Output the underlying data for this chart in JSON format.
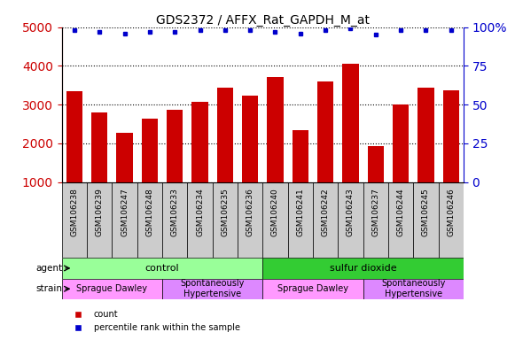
{
  "title": "GDS2372 / AFFX_Rat_GAPDH_M_at",
  "samples": [
    "GSM106238",
    "GSM106239",
    "GSM106247",
    "GSM106248",
    "GSM106233",
    "GSM106234",
    "GSM106235",
    "GSM106236",
    "GSM106240",
    "GSM106241",
    "GSM106242",
    "GSM106243",
    "GSM106237",
    "GSM106244",
    "GSM106245",
    "GSM106246"
  ],
  "counts": [
    3350,
    2800,
    2270,
    2650,
    2870,
    3080,
    3430,
    3240,
    3720,
    2340,
    3590,
    4060,
    1940,
    3010,
    3440,
    3380
  ],
  "percentile_ranks": [
    98,
    97,
    96,
    97,
    97,
    98,
    98,
    98,
    97,
    96,
    98,
    99,
    95,
    98,
    98,
    98
  ],
  "bar_color": "#cc0000",
  "dot_color": "#0000cc",
  "ylim_left": [
    1000,
    5000
  ],
  "ylim_right": [
    0,
    100
  ],
  "yticks_left": [
    1000,
    2000,
    3000,
    4000,
    5000
  ],
  "yticks_right": [
    0,
    25,
    50,
    75,
    100
  ],
  "agent_groups": [
    {
      "label": "control",
      "start": 0,
      "end": 8,
      "color": "#99ff99"
    },
    {
      "label": "sulfur dioxide",
      "start": 8,
      "end": 16,
      "color": "#33cc33"
    }
  ],
  "strain_groups": [
    {
      "label": "Sprague Dawley",
      "start": 0,
      "end": 4,
      "color": "#ff99ff"
    },
    {
      "label": "Spontaneously\nHypertensive",
      "start": 4,
      "end": 8,
      "color": "#dd88ff"
    },
    {
      "label": "Sprague Dawley",
      "start": 8,
      "end": 12,
      "color": "#ff99ff"
    },
    {
      "label": "Spontaneously\nHypertensive",
      "start": 12,
      "end": 16,
      "color": "#dd88ff"
    }
  ],
  "xtick_bg": "#cccccc",
  "plot_bg_color": "#ffffff",
  "left_tick_color": "#cc0000",
  "right_tick_color": "#0000cc",
  "label_row1": "agent",
  "label_row2": "strain"
}
